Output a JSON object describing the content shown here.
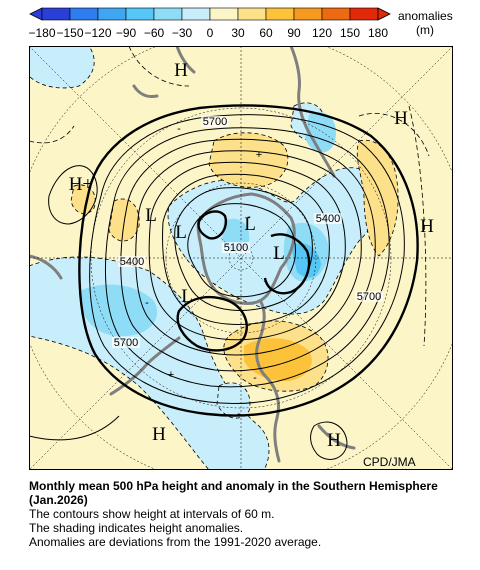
{
  "legend": {
    "title": "anomalies",
    "unit": "(m)",
    "ticks": [
      "−180",
      "−150",
      "−120",
      "−90",
      "−60",
      "−30",
      "0",
      "30",
      "60",
      "90",
      "120",
      "150",
      "180"
    ],
    "colors": [
      "#2a3ed8",
      "#2f7cf0",
      "#3fa6f2",
      "#55c6f5",
      "#8fdcf7",
      "#c8eefb",
      "#fbf5c8",
      "#fde08a",
      "#fcc33a",
      "#f59a1e",
      "#ee6a12",
      "#e02a0a"
    ]
  },
  "map": {
    "high_labels": [
      "H",
      "H",
      "H+",
      "H",
      "H",
      "H"
    ],
    "low_labels": [
      "L",
      "L",
      "L",
      "L",
      "L"
    ],
    "plus_signs": [
      "+",
      "+"
    ],
    "minus_signs": [
      "-",
      "-",
      "-",
      "-",
      "-",
      "-"
    ],
    "contour_labels": [
      "5700",
      "5400",
      "5100",
      "5400",
      "5700",
      "5700"
    ],
    "credit": "CPD/JMA",
    "colors": {
      "background": "#fbf5c8",
      "negative_weak": "#c8eefb",
      "negative_mid": "#8fdcf7",
      "negative_strong": "#55c6f5",
      "positive_weak": "#fde08a",
      "positive_mid": "#fcc33a",
      "coast": "#7f7f7f"
    }
  },
  "caption": {
    "title": "Monthly mean 500 hPa height and anomaly in the Southern Hemisphere (Jan.2026)",
    "line1": "The contours show height at intervals of 60 m.",
    "line2": "The shading indicates height anomalies.",
    "line3": "Anomalies are deviations from the 1991-2020 average."
  }
}
